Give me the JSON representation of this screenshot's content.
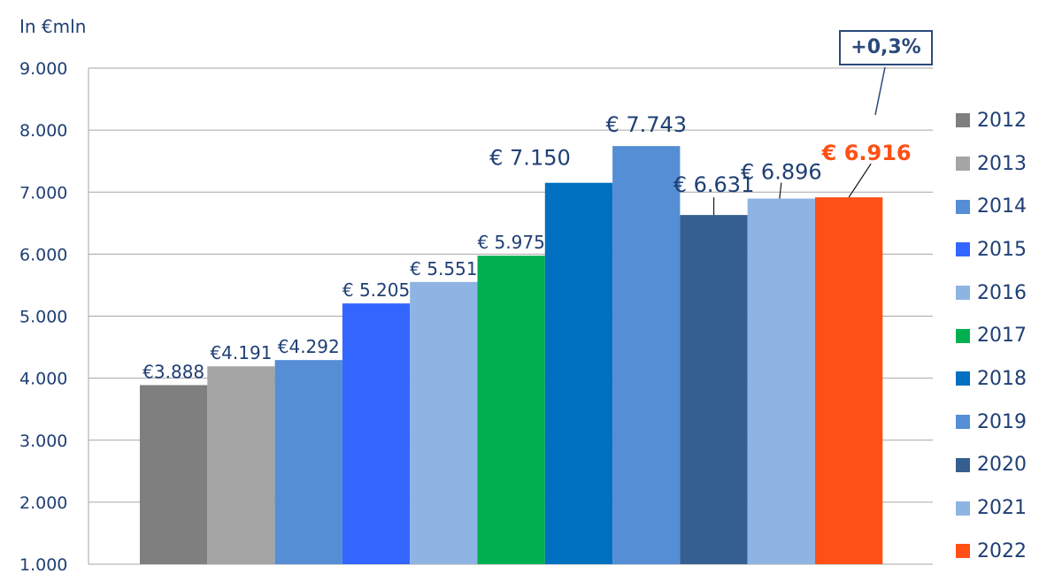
{
  "chart_data": {
    "type": "bar",
    "ylabel": "In €mln",
    "ylim": [
      1000,
      9000
    ],
    "yticks": [
      "1.000",
      "2.000",
      "3.000",
      "4.000",
      "5.000",
      "6.000",
      "7.000",
      "8.000",
      "9.000"
    ],
    "grid": true,
    "legend_position": "right",
    "categories": [
      "2012",
      "2013",
      "2014",
      "2015",
      "2016",
      "2017",
      "2018",
      "2019",
      "2020",
      "2021",
      "2022"
    ],
    "values": [
      3888,
      4191,
      4292,
      5205,
      5551,
      5975,
      7150,
      7743,
      6631,
      6896,
      6916
    ],
    "labels": [
      "€3.888",
      "€4.191",
      "€4.292",
      "€ 5.205",
      "€ 5.551",
      "€ 5.975",
      "€ 7.150",
      "€ 7.743",
      "€ 6.631",
      "€ 6.896",
      "€ 6.916"
    ],
    "colors": [
      "#7f7f7f",
      "#a5a5a5",
      "#558ed5",
      "#3366ff",
      "#8eb4e3",
      "#00b050",
      "#0070c0",
      "#558ed5",
      "#355f91",
      "#8eb4e3",
      "#ff5015"
    ],
    "highlight_color": "#ff5015",
    "label_color": "#1f3f75",
    "annotation": "+0,3%"
  }
}
